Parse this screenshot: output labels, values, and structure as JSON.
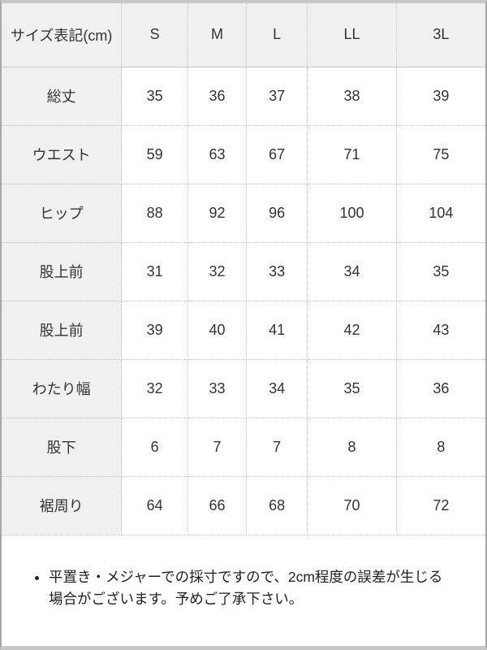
{
  "table": {
    "header": {
      "label_column": "サイズ表記(cm)",
      "sizes": [
        "S",
        "M",
        "L",
        "LL",
        "3L"
      ]
    },
    "rows": [
      {
        "label": "総丈",
        "values": [
          "35",
          "36",
          "37",
          "38",
          "39"
        ]
      },
      {
        "label": "ウエスト",
        "values": [
          "59",
          "63",
          "67",
          "71",
          "75"
        ]
      },
      {
        "label": "ヒップ",
        "values": [
          "88",
          "92",
          "96",
          "100",
          "104"
        ]
      },
      {
        "label": "股上前",
        "values": [
          "31",
          "32",
          "33",
          "34",
          "35"
        ]
      },
      {
        "label": "股上前",
        "values": [
          "39",
          "40",
          "41",
          "42",
          "43"
        ]
      },
      {
        "label": "わたり幅",
        "values": [
          "32",
          "33",
          "34",
          "35",
          "36"
        ]
      },
      {
        "label": "股下",
        "values": [
          "6",
          "7",
          "7",
          "8",
          "8"
        ]
      },
      {
        "label": "裾周り",
        "values": [
          "64",
          "66",
          "68",
          "70",
          "72"
        ]
      }
    ],
    "column_widths_pct": [
      24.8,
      13.7,
      12.1,
      12.6,
      18.4,
      18.4
    ]
  },
  "note": {
    "bullet_text": "平置き・メジャーでの採寸ですので、2cm程度の誤差が生じる場合がございます。予めご了承下さい。"
  },
  "colors": {
    "header_bg": "#f0f0f0",
    "cell_bg": "#ffffff",
    "dotted_border": "#c9c9c9",
    "frame_border": "#a6a6a6",
    "frame_bar": "#c7c7c7",
    "text": "#333333"
  }
}
